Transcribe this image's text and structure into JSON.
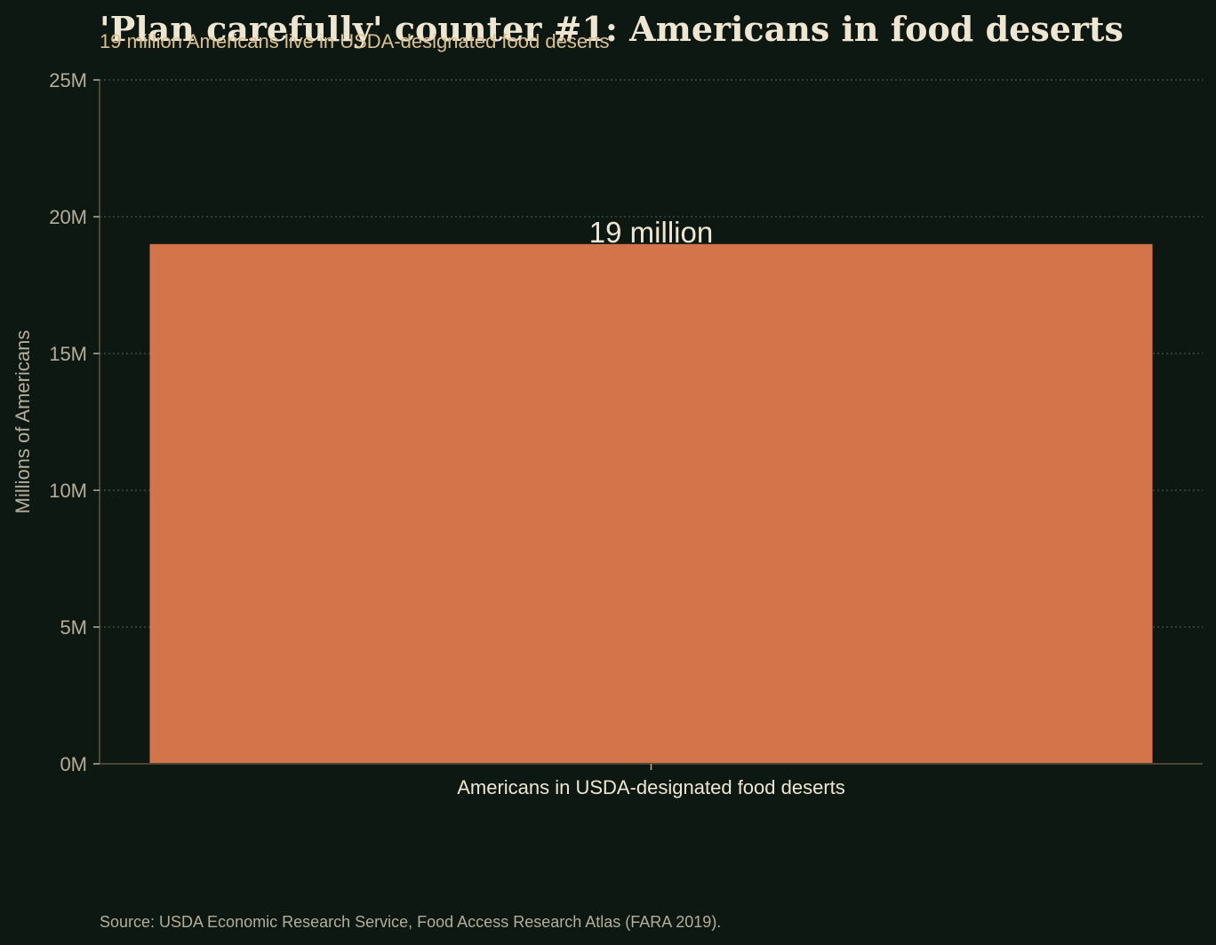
{
  "chart_data": {
    "type": "bar",
    "title": "'Plan carefully' counter #1: Americans in food deserts",
    "subtitle": "19 million Americans live in USDA-designated food deserts",
    "categories": [
      "Americans in USDA-designated food deserts"
    ],
    "values": [
      19000000
    ],
    "data_labels": [
      "19 million"
    ],
    "ylabel": "Millions of Americans",
    "xlabel": "",
    "ylim": [
      0,
      25000000
    ],
    "yticks": [
      0,
      5000000,
      10000000,
      15000000,
      20000000,
      25000000
    ],
    "ytick_labels": [
      "0M",
      "5M",
      "10M",
      "15M",
      "20M",
      "25M"
    ],
    "grid": "horizontal-dotted",
    "source": "Source: USDA Economic Research Service, Food Access Research Atlas (FARA 2019).",
    "colors": {
      "background": "#0e1812",
      "bar": "#d4744a",
      "title": "#efe6d2",
      "subtitle": "#d9c08f",
      "muted": "#b4ad9a"
    }
  }
}
